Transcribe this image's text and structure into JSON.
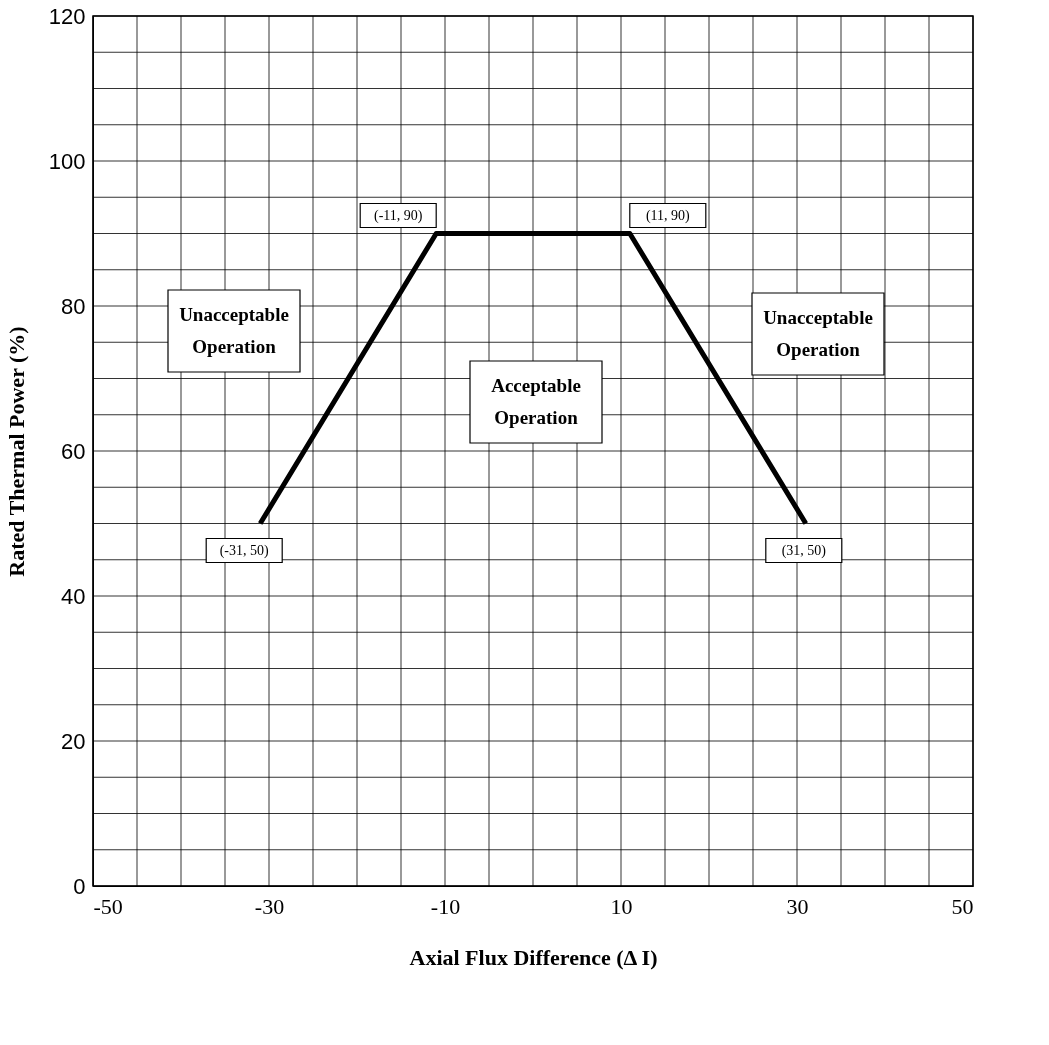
{
  "chart_data": {
    "type": "line",
    "xlabel": "Axial Flux Difference (Δ I)",
    "ylabel": "Rated Thermal Power (%)",
    "series": [
      {
        "color": "#000000",
        "x": [
          -31,
          -11,
          11,
          31
        ],
        "values": [
          50,
          90,
          90,
          50
        ]
      }
    ],
    "xlim": [
      -50,
      50
    ],
    "xticks": [
      -50,
      {
        "value": -45,
        "label": null
      },
      {
        "value": -40,
        "label": null
      },
      {
        "value": -35,
        "label": null
      },
      -30,
      {
        "value": -25,
        "label": null
      },
      {
        "value": -20,
        "label": null
      },
      {
        "value": -15,
        "label": null
      },
      -10,
      {
        "value": -5,
        "label": null
      },
      {
        "value": 0,
        "label": null
      },
      {
        "value": 5,
        "label": null
      },
      10,
      {
        "value": 15,
        "label": null
      },
      {
        "value": 20,
        "label": null
      },
      {
        "value": 25,
        "label": null
      },
      30,
      {
        "value": 35,
        "label": null
      },
      {
        "value": 40,
        "label": null
      },
      {
        "value": 45,
        "label": null
      },
      50
    ],
    "ylim": [
      0,
      120
    ],
    "yticks": [
      0,
      {
        "value": 5,
        "label": null
      },
      {
        "value": 10,
        "label": null
      },
      {
        "value": 15,
        "label": null
      },
      20,
      {
        "value": 25,
        "label": null
      },
      {
        "value": 30,
        "label": null
      },
      {
        "value": 35,
        "label": null
      },
      40,
      {
        "value": 45,
        "label": null
      },
      {
        "value": 50,
        "label": null
      },
      {
        "value": 55,
        "label": null
      },
      60,
      {
        "value": 65,
        "label": null
      },
      {
        "value": 70,
        "label": null
      },
      {
        "value": 75,
        "label": null
      },
      80,
      {
        "value": 85,
        "label": null
      },
      {
        "value": 90,
        "label": null
      },
      {
        "value": 95,
        "label": null
      },
      100,
      {
        "value": 105,
        "label": null
      },
      {
        "value": 110,
        "label": null
      },
      {
        "value": 115,
        "label": null
      },
      120
    ],
    "grid": true,
    "marker": "none",
    "line_style": "solid",
    "annotations": [
      {
        "text": "(-11, 90)",
        "x": -11,
        "y": 90
      },
      {
        "text": "(11, 90)",
        "x": 11,
        "y": 90
      },
      {
        "text": "(-31, 50)",
        "x": -31,
        "y": 50
      },
      {
        "text": "(31, 50)",
        "x": 31,
        "y": 50
      },
      "Unacceptable\nOperation",
      "Acceptable\nOperation",
      "Unacceptable\nOperation"
    ]
  }
}
